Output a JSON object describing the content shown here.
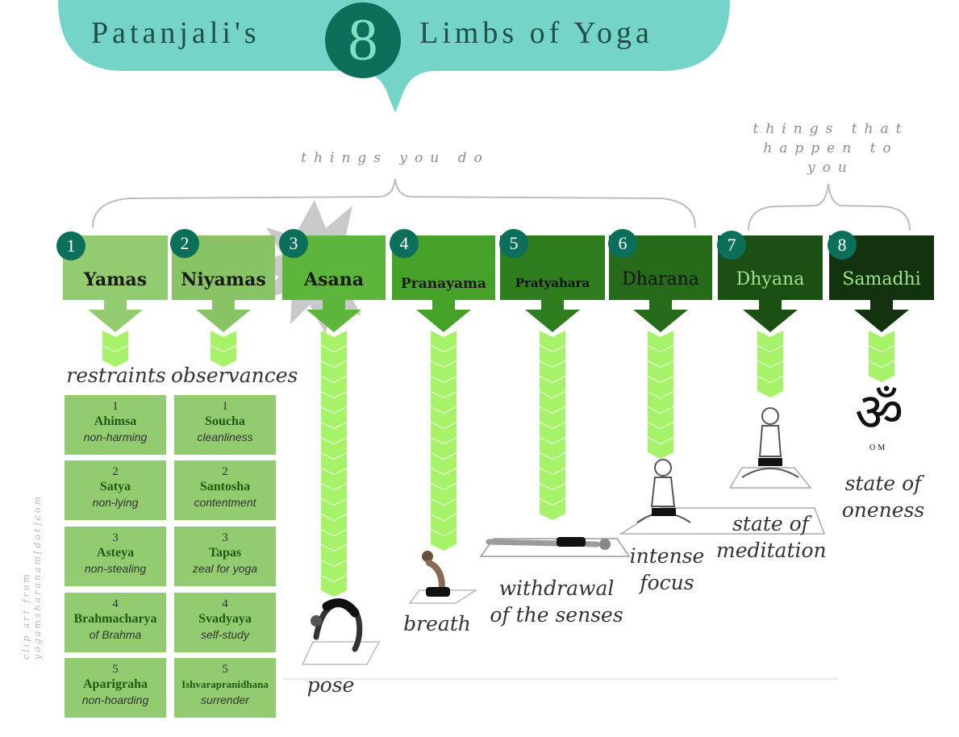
{
  "title": {
    "left": "Patanjali's",
    "number": "8",
    "right": "Limbs of Yoga"
  },
  "groups": {
    "do": "things you do",
    "happen": [
      "things that",
      "happen to",
      "you"
    ]
  },
  "limbs": [
    {
      "num": "1",
      "name": "Yamas",
      "caption": "restraints",
      "color": "#93cc70"
    },
    {
      "num": "2",
      "name": "Niyamas",
      "caption": "observances",
      "color": "#88c466"
    },
    {
      "num": "3",
      "name": "Asana",
      "caption": "pose",
      "color": "#5db53c"
    },
    {
      "num": "4",
      "name": "Pranayama",
      "caption": "breath",
      "color": "#45a127"
    },
    {
      "num": "5",
      "name": "Pratyahara",
      "caption": [
        "withdrawal",
        "of the senses"
      ],
      "color": "#2f7d1e"
    },
    {
      "num": "6",
      "name": "Dharana",
      "caption": [
        "intense",
        "focus"
      ],
      "color": "#266b1a"
    },
    {
      "num": "7",
      "name": "Dhyana",
      "caption": [
        "state of",
        "meditation"
      ],
      "color": "#1b4f14"
    },
    {
      "num": "8",
      "name": "Samadhi",
      "caption": [
        "state of",
        "oneness"
      ],
      "color": "#12330e"
    }
  ],
  "yamas": [
    {
      "n": "1",
      "name": "Ahimsa",
      "desc": "non-harming"
    },
    {
      "n": "2",
      "name": "Satya",
      "desc": "non-lying"
    },
    {
      "n": "3",
      "name": "Asteya",
      "desc": "non-stealing"
    },
    {
      "n": "4",
      "name": "Brahmacharya",
      "desc": "of Brahma"
    },
    {
      "n": "5",
      "name": "Aparigraha",
      "desc": "non-hoarding"
    }
  ],
  "niyamas": [
    {
      "n": "1",
      "name": "Soucha",
      "desc": "cleanliness"
    },
    {
      "n": "2",
      "name": "Santosha",
      "desc": "contentment"
    },
    {
      "n": "3",
      "name": "Tapas",
      "desc": "zeal for yoga"
    },
    {
      "n": "4",
      "name": "Svadyaya",
      "desc": "self-study"
    },
    {
      "n": "5",
      "name": "Ishvarapranidhana",
      "desc": "surrender"
    }
  ],
  "om": {
    "symbol": "ॐ",
    "text": "OM"
  },
  "credit": [
    "clip art from",
    "yogamsharanam[dot]com"
  ],
  "colors": {
    "banner": "#74d4c8",
    "badge": "#0c6f5a",
    "chevron": "#a6f268"
  }
}
